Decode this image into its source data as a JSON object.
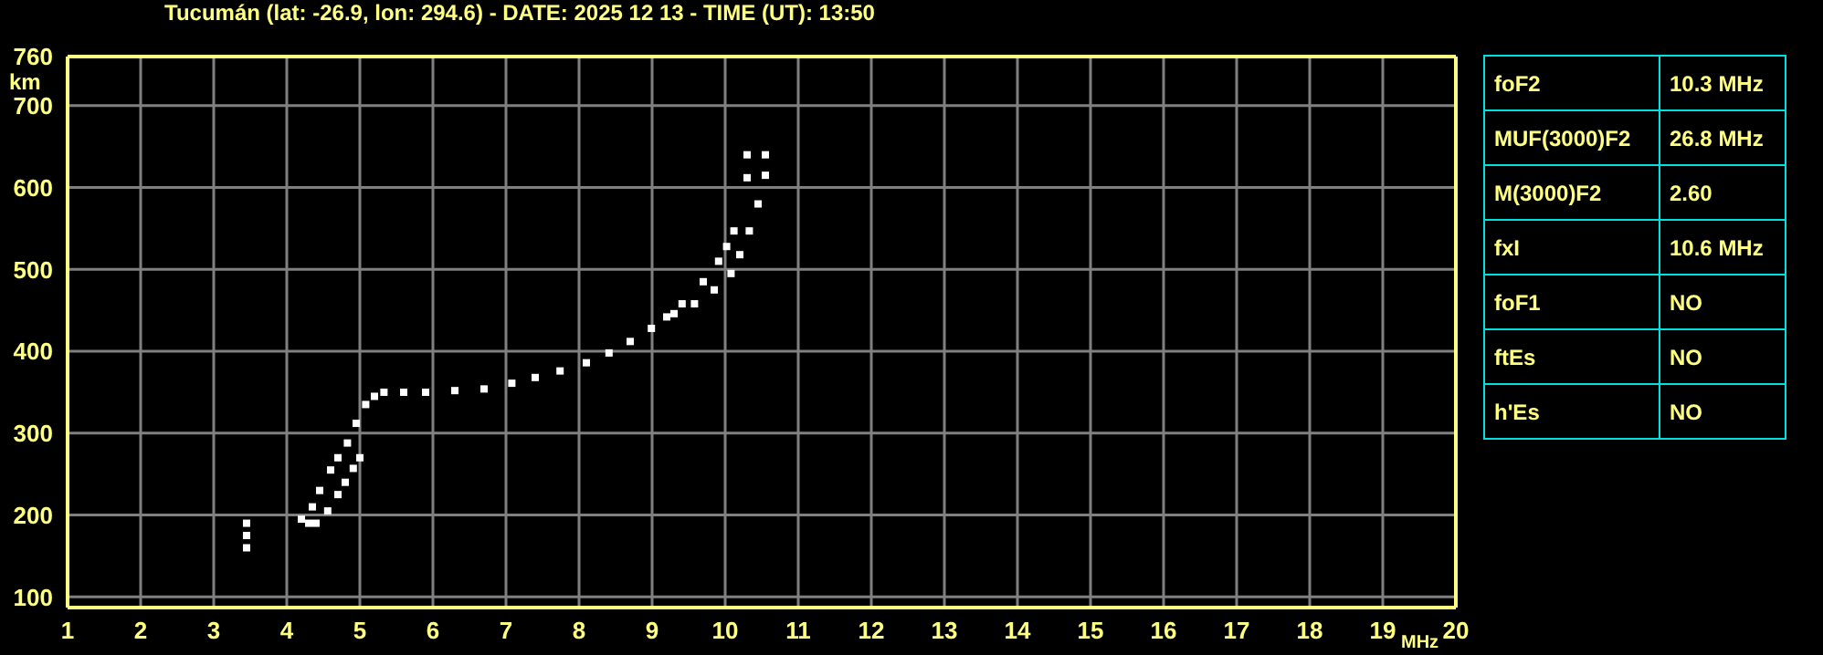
{
  "chart_data": [
    {
      "type": "scatter",
      "title": "Tucumán (lat: -26.9, lon: 294.6) - DATE: 2025 12 13 - TIME (UT): 13:50",
      "xlabel": "MHz",
      "ylabel": "km",
      "xlim": [
        1,
        20
      ],
      "xticks": [
        1,
        2,
        3,
        4,
        5,
        6,
        7,
        8,
        9,
        10,
        11,
        12,
        13,
        14,
        15,
        16,
        17,
        18,
        19,
        20
      ],
      "ylim": [
        87,
        760
      ],
      "yticks": [
        100,
        200,
        300,
        400,
        500,
        600,
        700,
        760
      ],
      "grid": true,
      "marker": "square",
      "series": [
        {
          "color": "#ffffff",
          "x": [
            3.45,
            3.45,
            3.45,
            4.2,
            4.35,
            4.45,
            4.6,
            4.7,
            4.83,
            4.95,
            5.08,
            5.2,
            5.33,
            5.6,
            5.9,
            6.3,
            6.7,
            7.08,
            7.4,
            7.74,
            8.1,
            8.41,
            8.7,
            8.99,
            9.2,
            9.41,
            9.7,
            9.91,
            10.02,
            10.12,
            10.3,
            10.3
          ],
          "values": [
            160,
            175,
            190,
            195,
            210,
            230,
            255,
            270,
            288,
            312,
            335,
            345,
            350,
            350,
            350,
            352,
            354,
            361,
            368,
            376,
            386,
            398,
            412,
            428,
            442,
            458,
            485,
            510,
            528,
            547,
            612,
            640
          ]
        },
        {
          "color": "#ffffff",
          "x": [
            4.3,
            4.4,
            4.56,
            4.7,
            4.8,
            4.91,
            5.0,
            9.3,
            9.58,
            9.85,
            10.08,
            10.2,
            10.33,
            10.45,
            10.55,
            10.55
          ],
          "values": [
            190,
            190,
            205,
            225,
            240,
            257,
            270,
            446,
            458,
            475,
            495,
            518,
            547,
            580,
            615,
            640
          ]
        }
      ]
    },
    {
      "type": "other",
      "annotations": [
        "foF2",
        "10.3 MHz",
        "MUF(3000)F2",
        "26.8 MHz",
        "M(3000)F2",
        "2.60",
        "fxI",
        "10.6 MHz",
        "foF1",
        "NO",
        "ftEs",
        "NO",
        "h'Es",
        "NO"
      ]
    }
  ]
}
